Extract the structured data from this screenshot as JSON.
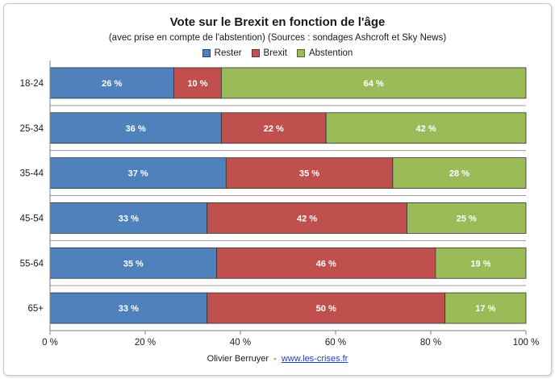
{
  "chart_data": {
    "type": "bar",
    "orientation": "horizontal",
    "stacked": true,
    "title": "Vote sur le Brexit en fonction de l'âge",
    "subtitle": "(avec prise en compte de l'abstention) (Sources : sondages Ashcroft et Sky News)",
    "categories": [
      "18-24",
      "25-34",
      "35-44",
      "45-54",
      "55-64",
      "65+"
    ],
    "series": [
      {
        "name": "Rester",
        "color": "#4f81bd",
        "values": [
          26,
          36,
          37,
          33,
          35,
          33
        ]
      },
      {
        "name": "Brexit",
        "color": "#c0504d",
        "values": [
          10,
          22,
          35,
          42,
          46,
          50
        ]
      },
      {
        "name": "Abstention",
        "color": "#9bbb59",
        "values": [
          64,
          42,
          28,
          25,
          19,
          17
        ]
      }
    ],
    "data_label_suffix": " %",
    "xlim": [
      0,
      100
    ],
    "xticks": [
      0,
      20,
      40,
      60,
      80,
      100
    ],
    "xtick_labels": [
      "0 %",
      "20 %",
      "40 %",
      "60 %",
      "80 %",
      "100 %"
    ],
    "legend_position": "top",
    "grid": "horizontal separators between categories"
  },
  "source": {
    "author": "Olivier Berruyer",
    "separator": "-",
    "site": "www.les-crises.fr"
  }
}
